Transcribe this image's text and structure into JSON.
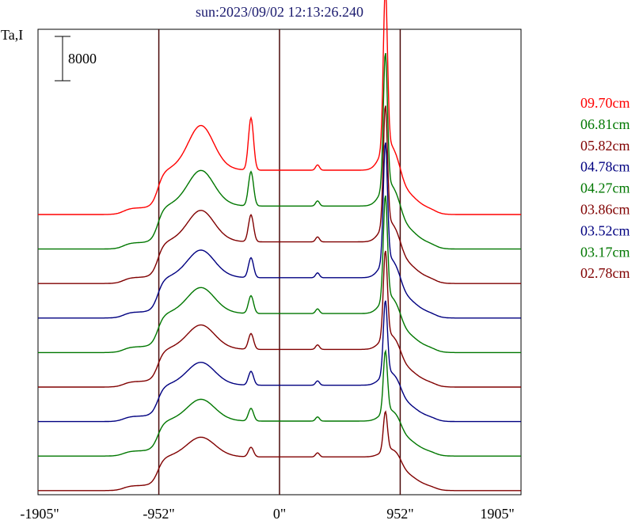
{
  "title": "sun:2023/09/02 12:13:26.240",
  "ylabel": "Ta,I",
  "scale_bar_label": "8000",
  "colors": {
    "frame": "#000000",
    "vline": "#4a0a0a",
    "title": "#1a1a6e"
  },
  "chart_data": {
    "type": "line",
    "title": "sun:2023/09/02 12:13:26.240",
    "ylabel": "Ta,I",
    "xlim": [
      -1905,
      1905
    ],
    "x_ticks": [
      -1905,
      -952,
      0,
      952,
      1905
    ],
    "x_tick_labels": [
      "-1905\"",
      "-952\"",
      "0\"",
      "952\"",
      "1905\""
    ],
    "vertical_lines": [
      -952,
      0,
      952
    ],
    "scale_bar_value": 8000,
    "grid": false,
    "legend_position": "right",
    "series": [
      {
        "name": "09.70cm",
        "color": "#ff0000",
        "peak": 1.0,
        "mid": 0.62
      },
      {
        "name": "06.81cm",
        "color": "#007700",
        "peak": 0.86,
        "mid": 0.42
      },
      {
        "name": "05.82cm",
        "color": "#800000",
        "peak": 0.79,
        "mid": 0.34
      },
      {
        "name": "04.78cm",
        "color": "#000080",
        "peak": 0.81,
        "mid": 0.26
      },
      {
        "name": "04.27cm",
        "color": "#007700",
        "peak": 0.73,
        "mid": 0.24
      },
      {
        "name": "03.86cm",
        "color": "#800000",
        "peak": 0.63,
        "mid": 0.22
      },
      {
        "name": "03.52cm",
        "color": "#000080",
        "peak": 0.56,
        "mid": 0.2
      },
      {
        "name": "03.17cm",
        "color": "#007700",
        "peak": 0.48,
        "mid": 0.19
      },
      {
        "name": "02.78cm",
        "color": "#800000",
        "peak": 0.32,
        "mid": 0.15
      }
    ]
  }
}
